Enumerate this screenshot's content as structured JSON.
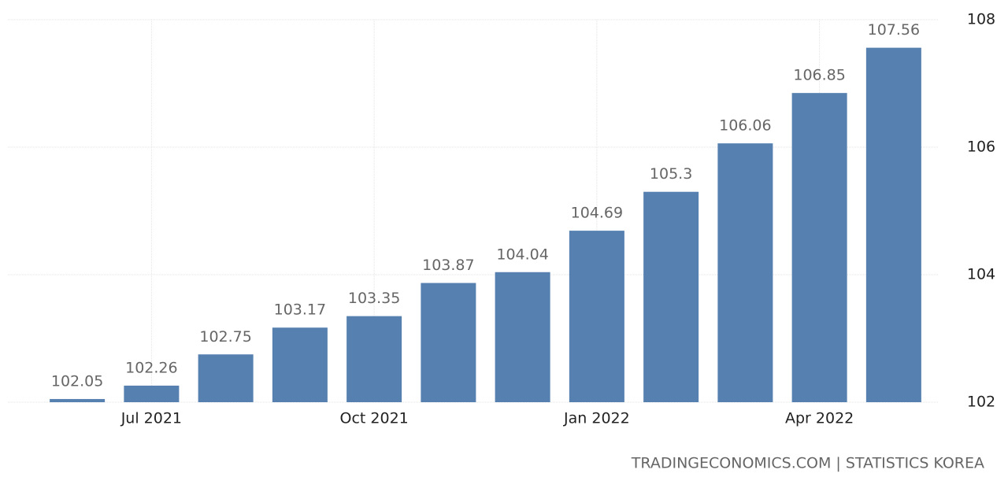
{
  "chart_data": {
    "type": "bar",
    "categories": [
      null,
      "Jul 2021",
      null,
      null,
      "Oct 2021",
      null,
      null,
      "Jan 2022",
      null,
      null,
      "Apr 2022",
      null
    ],
    "values": [
      102.05,
      102.26,
      102.75,
      103.17,
      103.35,
      103.87,
      104.04,
      104.69,
      105.3,
      106.06,
      106.85,
      107.56
    ],
    "color": "#5580b0",
    "ylim": [
      102,
      108
    ],
    "yticks": [
      102,
      104,
      106,
      108
    ],
    "grid": true,
    "source": "TRADINGECONOMICS.COM | STATISTICS KOREA"
  }
}
